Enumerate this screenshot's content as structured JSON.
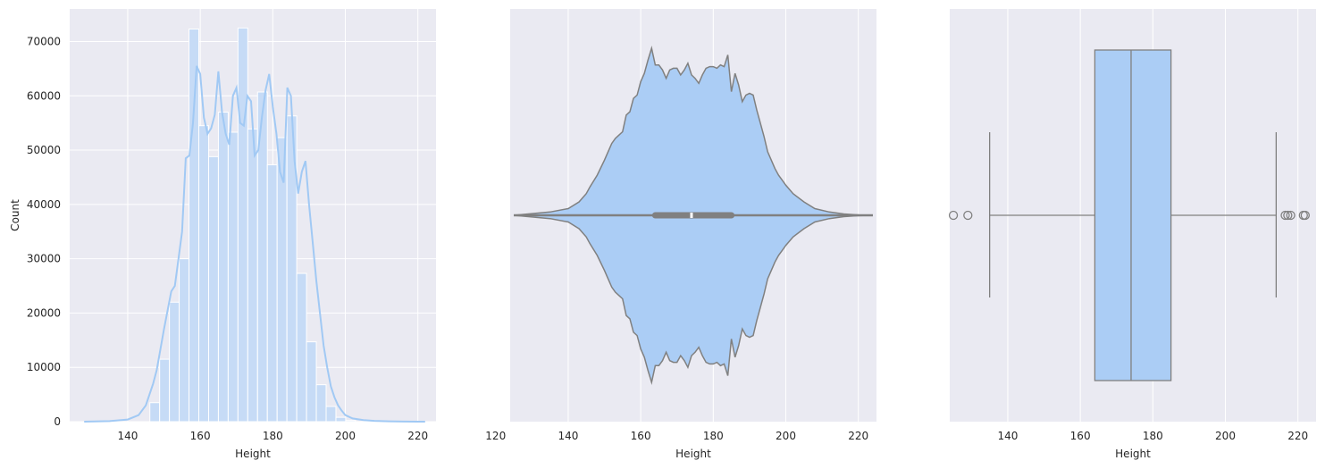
{
  "colors": {
    "background": "#eaeaf2",
    "grid": "#ffffff",
    "hist_bar": "#c6dbf6",
    "hist_kde": "#a1c9f4",
    "violin_fill": "#abcdf5",
    "box_fill": "#abcdf5",
    "outline": "#808080"
  },
  "chart_data": [
    {
      "type": "histogram",
      "xlabel": "Height",
      "ylabel": "Count",
      "xlim": [
        124,
        225
      ],
      "ylim": [
        0,
        76000
      ],
      "xticks": [
        140,
        160,
        180,
        200,
        220
      ],
      "yticks": [
        0,
        10000,
        20000,
        30000,
        40000,
        50000,
        60000,
        70000
      ],
      "grid": true,
      "bins": [
        {
          "x0": 146.1,
          "x1": 148.8,
          "count": 3500
        },
        {
          "x0": 148.8,
          "x1": 151.5,
          "count": 11500
        },
        {
          "x0": 151.5,
          "x1": 154.2,
          "count": 22000
        },
        {
          "x0": 154.2,
          "x1": 156.9,
          "count": 30000
        },
        {
          "x0": 156.9,
          "x1": 159.6,
          "count": 72300
        },
        {
          "x0": 159.6,
          "x1": 162.3,
          "count": 54500
        },
        {
          "x0": 162.3,
          "x1": 165.0,
          "count": 48800
        },
        {
          "x0": 165.0,
          "x1": 167.7,
          "count": 57000
        },
        {
          "x0": 167.7,
          "x1": 170.4,
          "count": 53300
        },
        {
          "x0": 170.4,
          "x1": 173.1,
          "count": 72500
        },
        {
          "x0": 173.1,
          "x1": 175.8,
          "count": 53900
        },
        {
          "x0": 175.8,
          "x1": 178.5,
          "count": 60700
        },
        {
          "x0": 178.5,
          "x1": 181.2,
          "count": 47300
        },
        {
          "x0": 181.2,
          "x1": 183.9,
          "count": 52300
        },
        {
          "x0": 183.9,
          "x1": 186.6,
          "count": 56300
        },
        {
          "x0": 186.6,
          "x1": 189.3,
          "count": 27300
        },
        {
          "x0": 189.3,
          "x1": 192.0,
          "count": 14700
        },
        {
          "x0": 192.0,
          "x1": 194.7,
          "count": 6800
        },
        {
          "x0": 194.7,
          "x1": 197.4,
          "count": 2800
        },
        {
          "x0": 197.4,
          "x1": 200.1,
          "count": 800
        },
        {
          "x0": 200.1,
          "x1": 202.8,
          "count": 200
        }
      ],
      "kde": {
        "x": [
          128,
          135,
          140,
          143,
          145,
          147,
          148,
          150,
          152,
          153,
          154,
          155,
          156,
          157,
          158,
          159,
          160,
          161,
          162,
          163,
          164,
          165,
          166,
          167,
          168,
          169,
          170,
          171,
          172,
          173,
          174,
          175,
          176,
          177,
          178,
          179,
          180,
          181,
          182,
          183,
          184,
          185,
          186,
          187,
          188,
          189,
          190,
          191,
          192,
          193,
          194,
          195,
          196,
          197,
          198,
          199,
          200,
          202,
          205,
          208,
          212,
          216,
          220,
          222
        ],
        "y": [
          0,
          100,
          400,
          1200,
          3000,
          7000,
          9500,
          17000,
          24000,
          25000,
          30000,
          35000,
          48500,
          49000,
          55000,
          65500,
          64000,
          56000,
          53000,
          54000,
          56500,
          64500,
          57000,
          53000,
          51000,
          60000,
          61500,
          55000,
          54500,
          60000,
          59000,
          49000,
          50000,
          56000,
          61000,
          64000,
          58000,
          53000,
          46000,
          44000,
          61500,
          60000,
          48000,
          42000,
          46000,
          48000,
          40000,
          33000,
          26000,
          20000,
          14000,
          10000,
          6500,
          4500,
          3000,
          2000,
          1200,
          600,
          300,
          150,
          60,
          20,
          5,
          0
        ]
      }
    },
    {
      "type": "violin",
      "xlabel": "Height",
      "xlim": [
        124,
        225
      ],
      "xticks": [
        120,
        140,
        160,
        180,
        200,
        220
      ],
      "grid": true,
      "whisker_range": [
        125,
        224
      ],
      "quartiles": [
        164,
        174,
        185
      ],
      "median": 174,
      "density": {
        "x": [
          125,
          135,
          140,
          143,
          145,
          146,
          148,
          150,
          151,
          152,
          153,
          154,
          155,
          156,
          157,
          158,
          159,
          160,
          161,
          162,
          163,
          164,
          165,
          166,
          167,
          168,
          169,
          170,
          171,
          172,
          173,
          174,
          175,
          176,
          177,
          178,
          179,
          180,
          181,
          182,
          183,
          184,
          185,
          186,
          187,
          188,
          189,
          190,
          191,
          192,
          193,
          194,
          195,
          196,
          197,
          198,
          199,
          200,
          202,
          205,
          208,
          212,
          216,
          220,
          224
        ],
        "width": [
          0,
          0.02,
          0.04,
          0.08,
          0.13,
          0.17,
          0.24,
          0.33,
          0.38,
          0.43,
          0.46,
          0.48,
          0.5,
          0.6,
          0.62,
          0.7,
          0.72,
          0.8,
          0.85,
          0.93,
          1.0,
          0.9,
          0.9,
          0.87,
          0.82,
          0.87,
          0.88,
          0.88,
          0.84,
          0.87,
          0.91,
          0.84,
          0.82,
          0.79,
          0.84,
          0.88,
          0.89,
          0.89,
          0.88,
          0.9,
          0.89,
          0.96,
          0.74,
          0.85,
          0.78,
          0.68,
          0.72,
          0.73,
          0.72,
          0.63,
          0.55,
          0.47,
          0.38,
          0.33,
          0.28,
          0.24,
          0.21,
          0.18,
          0.13,
          0.08,
          0.04,
          0.02,
          0.008,
          0.002,
          0
        ]
      }
    },
    {
      "type": "box",
      "xlabel": "Height",
      "xlim": [
        124,
        225
      ],
      "xticks": [
        140,
        160,
        180,
        200,
        220
      ],
      "grid": true,
      "q1": 164,
      "median": 174,
      "q3": 185,
      "whisker_low": 135,
      "whisker_high": 214,
      "outliers": [
        125,
        129,
        216.5,
        217.2,
        218,
        221.5,
        222
      ]
    }
  ]
}
